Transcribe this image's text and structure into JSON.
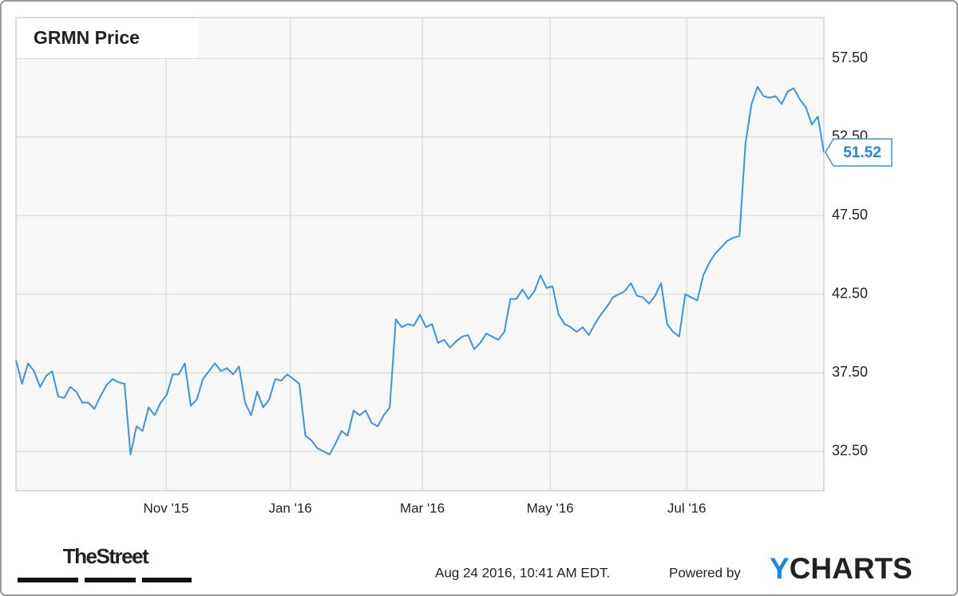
{
  "chart_data": {
    "type": "line",
    "title": "GRMN Price",
    "series": [
      {
        "name": "GRMN",
        "color": "#3b93e3",
        "values": [
          38.3,
          36.8,
          38.1,
          37.6,
          36.6,
          37.3,
          37.6,
          36.0,
          35.9,
          36.6,
          36.3,
          35.6,
          35.6,
          35.2,
          36.0,
          36.7,
          37.1,
          36.9,
          36.8,
          32.3,
          34.1,
          33.8,
          35.3,
          34.8,
          35.6,
          36.1,
          37.4,
          37.4,
          38.1,
          35.4,
          35.8,
          37.1,
          37.6,
          38.1,
          37.6,
          37.8,
          37.4,
          37.9,
          35.6,
          34.8,
          36.3,
          35.3,
          35.8,
          37.1,
          37.0,
          37.4,
          37.1,
          36.8,
          33.5,
          33.2,
          32.7,
          32.5,
          32.3,
          33.0,
          33.8,
          33.5,
          35.1,
          34.8,
          35.1,
          34.3,
          34.1,
          34.8,
          35.3,
          40.9,
          40.4,
          40.6,
          40.5,
          41.2,
          40.4,
          40.6,
          39.4,
          39.6,
          39.1,
          39.5,
          39.8,
          39.9,
          39.0,
          39.4,
          40.0,
          39.8,
          39.6,
          40.1,
          42.2,
          42.2,
          42.8,
          42.2,
          42.7,
          43.7,
          42.9,
          43.0,
          41.2,
          40.6,
          40.4,
          40.1,
          40.4,
          39.9,
          40.6,
          41.2,
          41.7,
          42.3,
          42.5,
          42.7,
          43.2,
          42.4,
          42.3,
          41.9,
          42.4,
          43.2,
          40.6,
          40.1,
          39.8,
          42.5,
          42.3,
          42.1,
          43.7,
          44.5,
          45.1,
          45.5,
          45.9,
          46.1,
          46.2,
          52.1,
          54.6,
          55.7,
          55.1,
          55.0,
          55.1,
          54.6,
          55.4,
          55.6,
          54.9,
          54.4,
          53.3,
          53.8,
          51.52
        ]
      }
    ],
    "xlim": [
      0,
      134
    ],
    "xticks": [
      {
        "value": 24.9,
        "label": "Nov '15"
      },
      {
        "value": 45.5,
        "label": "Jan '16"
      },
      {
        "value": 67.4,
        "label": "Mar '16"
      },
      {
        "value": 88.6,
        "label": "May '16"
      },
      {
        "value": 111.25,
        "label": "Jul '16"
      }
    ],
    "ylim": [
      30,
      60.1
    ],
    "yticks": [
      {
        "value": 32.5,
        "label": "32.50"
      },
      {
        "value": 37.5,
        "label": "37.50"
      },
      {
        "value": 42.5,
        "label": "42.50"
      },
      {
        "value": 47.5,
        "label": "47.50"
      },
      {
        "value": 52.5,
        "label": "52.50"
      },
      {
        "value": 57.5,
        "label": "57.50"
      }
    ],
    "grid": true
  },
  "footer": {
    "logo": "TheStreet",
    "timestamp": "Aug 24 2016, 10:41 AM EDT.",
    "powered_by": "Powered by",
    "brand": "YCHARTS"
  }
}
